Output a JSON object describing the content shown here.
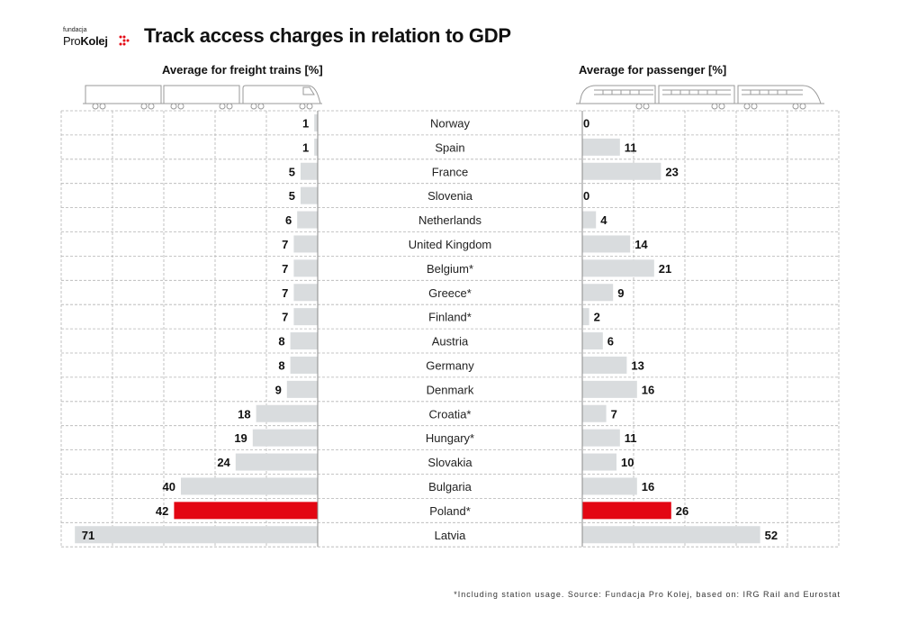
{
  "header": {
    "logo_small": "fundacja",
    "logo_pro": "Pro",
    "logo_kolej": "Kolej",
    "title": "Track access charges in relation to GDP"
  },
  "panels": {
    "freight_title": "Average for freight trains [%]",
    "passenger_title": "Average for passenger [%]"
  },
  "footnote": "*Including station usage. Source: Fundacja Pro Kolej, based on: IRG Rail and Eurostat",
  "colors": {
    "bar_default": "#d9dcde",
    "bar_highlight": "#e30613",
    "grid": "#b4b4b4"
  },
  "chart_data": {
    "type": "bar",
    "orientation": "horizontal",
    "layout": "butterfly",
    "categories": [
      "Norway",
      "Spain",
      "France",
      "Slovenia",
      "Netherlands",
      "United Kingdom",
      "Belgium*",
      "Greece*",
      "Finland*",
      "Austria",
      "Germany",
      "Denmark",
      "Croatia*",
      "Hungary*",
      "Slovakia",
      "Bulgaria",
      "Poland*",
      "Latvia"
    ],
    "highlight": "Poland*",
    "series": [
      {
        "name": "Average for freight trains [%]",
        "values": [
          1,
          1,
          5,
          5,
          6,
          7,
          7,
          7,
          7,
          8,
          8,
          9,
          18,
          19,
          24,
          40,
          42,
          71
        ]
      },
      {
        "name": "Average for passenger [%]",
        "values": [
          0,
          11,
          23,
          0,
          4,
          14,
          21,
          9,
          2,
          6,
          13,
          16,
          7,
          11,
          10,
          16,
          26,
          52
        ]
      }
    ],
    "xlim": [
      0,
      75
    ],
    "grid": true,
    "legend": "none"
  }
}
